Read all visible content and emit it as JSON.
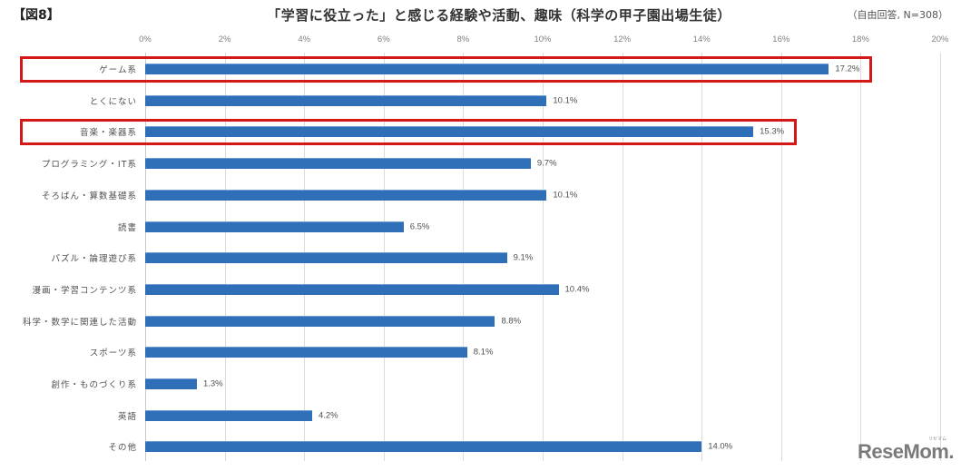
{
  "header": {
    "figure_label": "【図8】",
    "title": "「学習に役立った」と感じる経験や活動、趣味（科学の甲子園出場生徒）",
    "note": "（自由回答, N=308）"
  },
  "watermark": {
    "logo": "ReseMom.",
    "logo_sub": "リセマム"
  },
  "colors": {
    "bar": "#2e6fb7",
    "highlight": "#d41818",
    "grid": "#dcdcdc"
  },
  "chart_data": {
    "type": "bar",
    "orientation": "horizontal",
    "title": "「学習に役立った」と感じる経験や活動、趣味（科学の甲子園出場生徒）",
    "subtitle": "（自由回答, N=308）",
    "xlabel": "",
    "ylabel": "",
    "xlim": [
      0,
      20
    ],
    "x_ticks": [
      "0%",
      "2%",
      "4%",
      "6%",
      "8%",
      "10%",
      "12%",
      "14%",
      "16%",
      "18%",
      "20%"
    ],
    "grid": true,
    "legend": null,
    "categories": [
      "ゲーム系",
      "とくにない",
      "音楽・楽器系",
      "プログラミング・IT系",
      "そろばん・算数基礎系",
      "読書",
      "パズル・論理遊び系",
      "漫画・学習コンテンツ系",
      "科学・数学に関連した活動",
      "スポーツ系",
      "創作・ものづくり系",
      "英語",
      "その他"
    ],
    "values": [
      17.2,
      10.1,
      15.3,
      9.7,
      10.1,
      6.5,
      9.1,
      10.4,
      8.8,
      8.1,
      1.3,
      4.2,
      14.0
    ],
    "value_labels": [
      "17.2%",
      "10.1%",
      "15.3%",
      "9.7%",
      "10.1%",
      "6.5%",
      "9.1%",
      "10.4%",
      "8.8%",
      "8.1%",
      "1.3%",
      "4.2%",
      "14.0%"
    ],
    "annotations": [
      {
        "type": "highlight-box",
        "category": "ゲーム系",
        "color": "#d41818"
      },
      {
        "type": "highlight-box",
        "category": "音楽・楽器系",
        "color": "#d41818"
      }
    ]
  }
}
